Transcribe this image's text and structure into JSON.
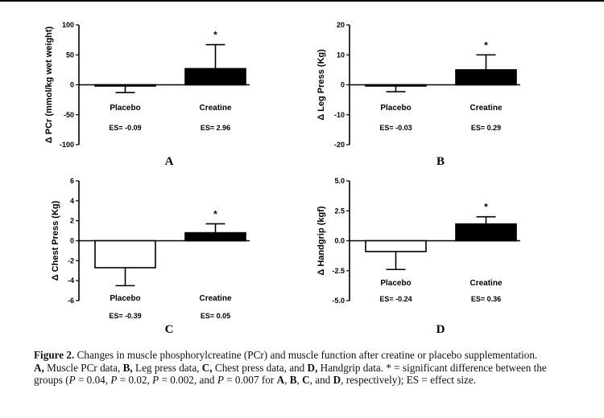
{
  "chart_data": [
    {
      "type": "bar",
      "panel": "A",
      "ylabel": "Δ PCr (mmol/kg wet weight)",
      "ylim": [
        -100,
        100
      ],
      "yticks": [
        "100",
        "50",
        "0",
        "-50",
        "-100"
      ],
      "yticks_values": [
        100,
        50,
        0,
        -50,
        -100
      ],
      "categories": [
        "Placebo",
        "Creatine"
      ],
      "values": [
        -1,
        27
      ],
      "error": [
        12,
        40
      ],
      "es_labels": [
        "ES= -0.09",
        "ES= 2.96"
      ],
      "significant": [
        false,
        true
      ],
      "significance_marker": "*",
      "bar_colors": [
        "#ffffff",
        "#000000"
      ]
    },
    {
      "type": "bar",
      "panel": "B",
      "ylabel": "Δ Leg Press (Kg)",
      "ylim": [
        -20,
        20
      ],
      "yticks": [
        "20",
        "10",
        "0",
        "-10",
        "-20"
      ],
      "yticks_values": [
        20,
        10,
        0,
        -10,
        -20
      ],
      "categories": [
        "Placebo",
        "Creatine"
      ],
      "values": [
        -0.3,
        5
      ],
      "error": [
        2,
        5
      ],
      "es_labels": [
        "ES= -0.03",
        "ES= 0.29"
      ],
      "significant": [
        false,
        true
      ],
      "significance_marker": "*",
      "bar_colors": [
        "#ffffff",
        "#000000"
      ]
    },
    {
      "type": "bar",
      "panel": "C",
      "ylabel": "Δ Chest Press (Kg)",
      "ylim": [
        -6,
        6
      ],
      "yticks": [
        "6",
        "4",
        "2",
        "0",
        "-2",
        "-4",
        "-6"
      ],
      "yticks_values": [
        6,
        4,
        2,
        0,
        -2,
        -4,
        -6
      ],
      "categories": [
        "Placebo",
        "Creatine"
      ],
      "values": [
        -2.7,
        0.8
      ],
      "error": [
        1.8,
        0.9
      ],
      "es_labels": [
        "ES= -0.39",
        "ES= 0.05"
      ],
      "significant": [
        false,
        true
      ],
      "significance_marker": "*",
      "bar_colors": [
        "#ffffff",
        "#000000"
      ]
    },
    {
      "type": "bar",
      "panel": "D",
      "ylabel": "Δ Handgrip (kgf)",
      "ylim": [
        -5,
        5
      ],
      "yticks": [
        "5.0",
        "2.5",
        "0.0",
        "-2.5",
        "-5.0"
      ],
      "yticks_values": [
        5,
        2.5,
        0,
        -2.5,
        -5
      ],
      "categories": [
        "Placebo",
        "Creatine"
      ],
      "values": [
        -0.9,
        1.4
      ],
      "error": [
        1.5,
        0.6
      ],
      "es_labels": [
        "ES= -0.24",
        "ES= 0.36"
      ],
      "significant": [
        false,
        true
      ],
      "significance_marker": "*",
      "bar_colors": [
        "#ffffff",
        "#000000"
      ]
    }
  ],
  "caption": {
    "figure_label": "Figure 2.",
    "intro": " Changes in muscle phosphorylcreatine (PCr) and muscle function after creatine or placebo supplementation. ",
    "a_label": "A,",
    "a_text": " Muscle PCr data, ",
    "b_label": "B,",
    "b_text": " Leg press data, ",
    "c_label": "C,",
    "c_text": " Chest press data, and ",
    "d_label": "D,",
    "d_text": " Handgrip data. * = significant difference between the groups (",
    "p1": "P",
    "p1_text": " = 0.04, ",
    "p2": "P",
    "p2_text": " = 0.02, ",
    "p3": "P",
    "p3_text": " = 0.002, and ",
    "p4": "P",
    "p4_text": " = 0.007 for ",
    "a2": "A",
    "sep1": ", ",
    "b2": "B",
    "sep2": ", ",
    "c2": "C",
    "sep3": ", and ",
    "d2": "D",
    "end": ", respectively); ES = effect size."
  }
}
